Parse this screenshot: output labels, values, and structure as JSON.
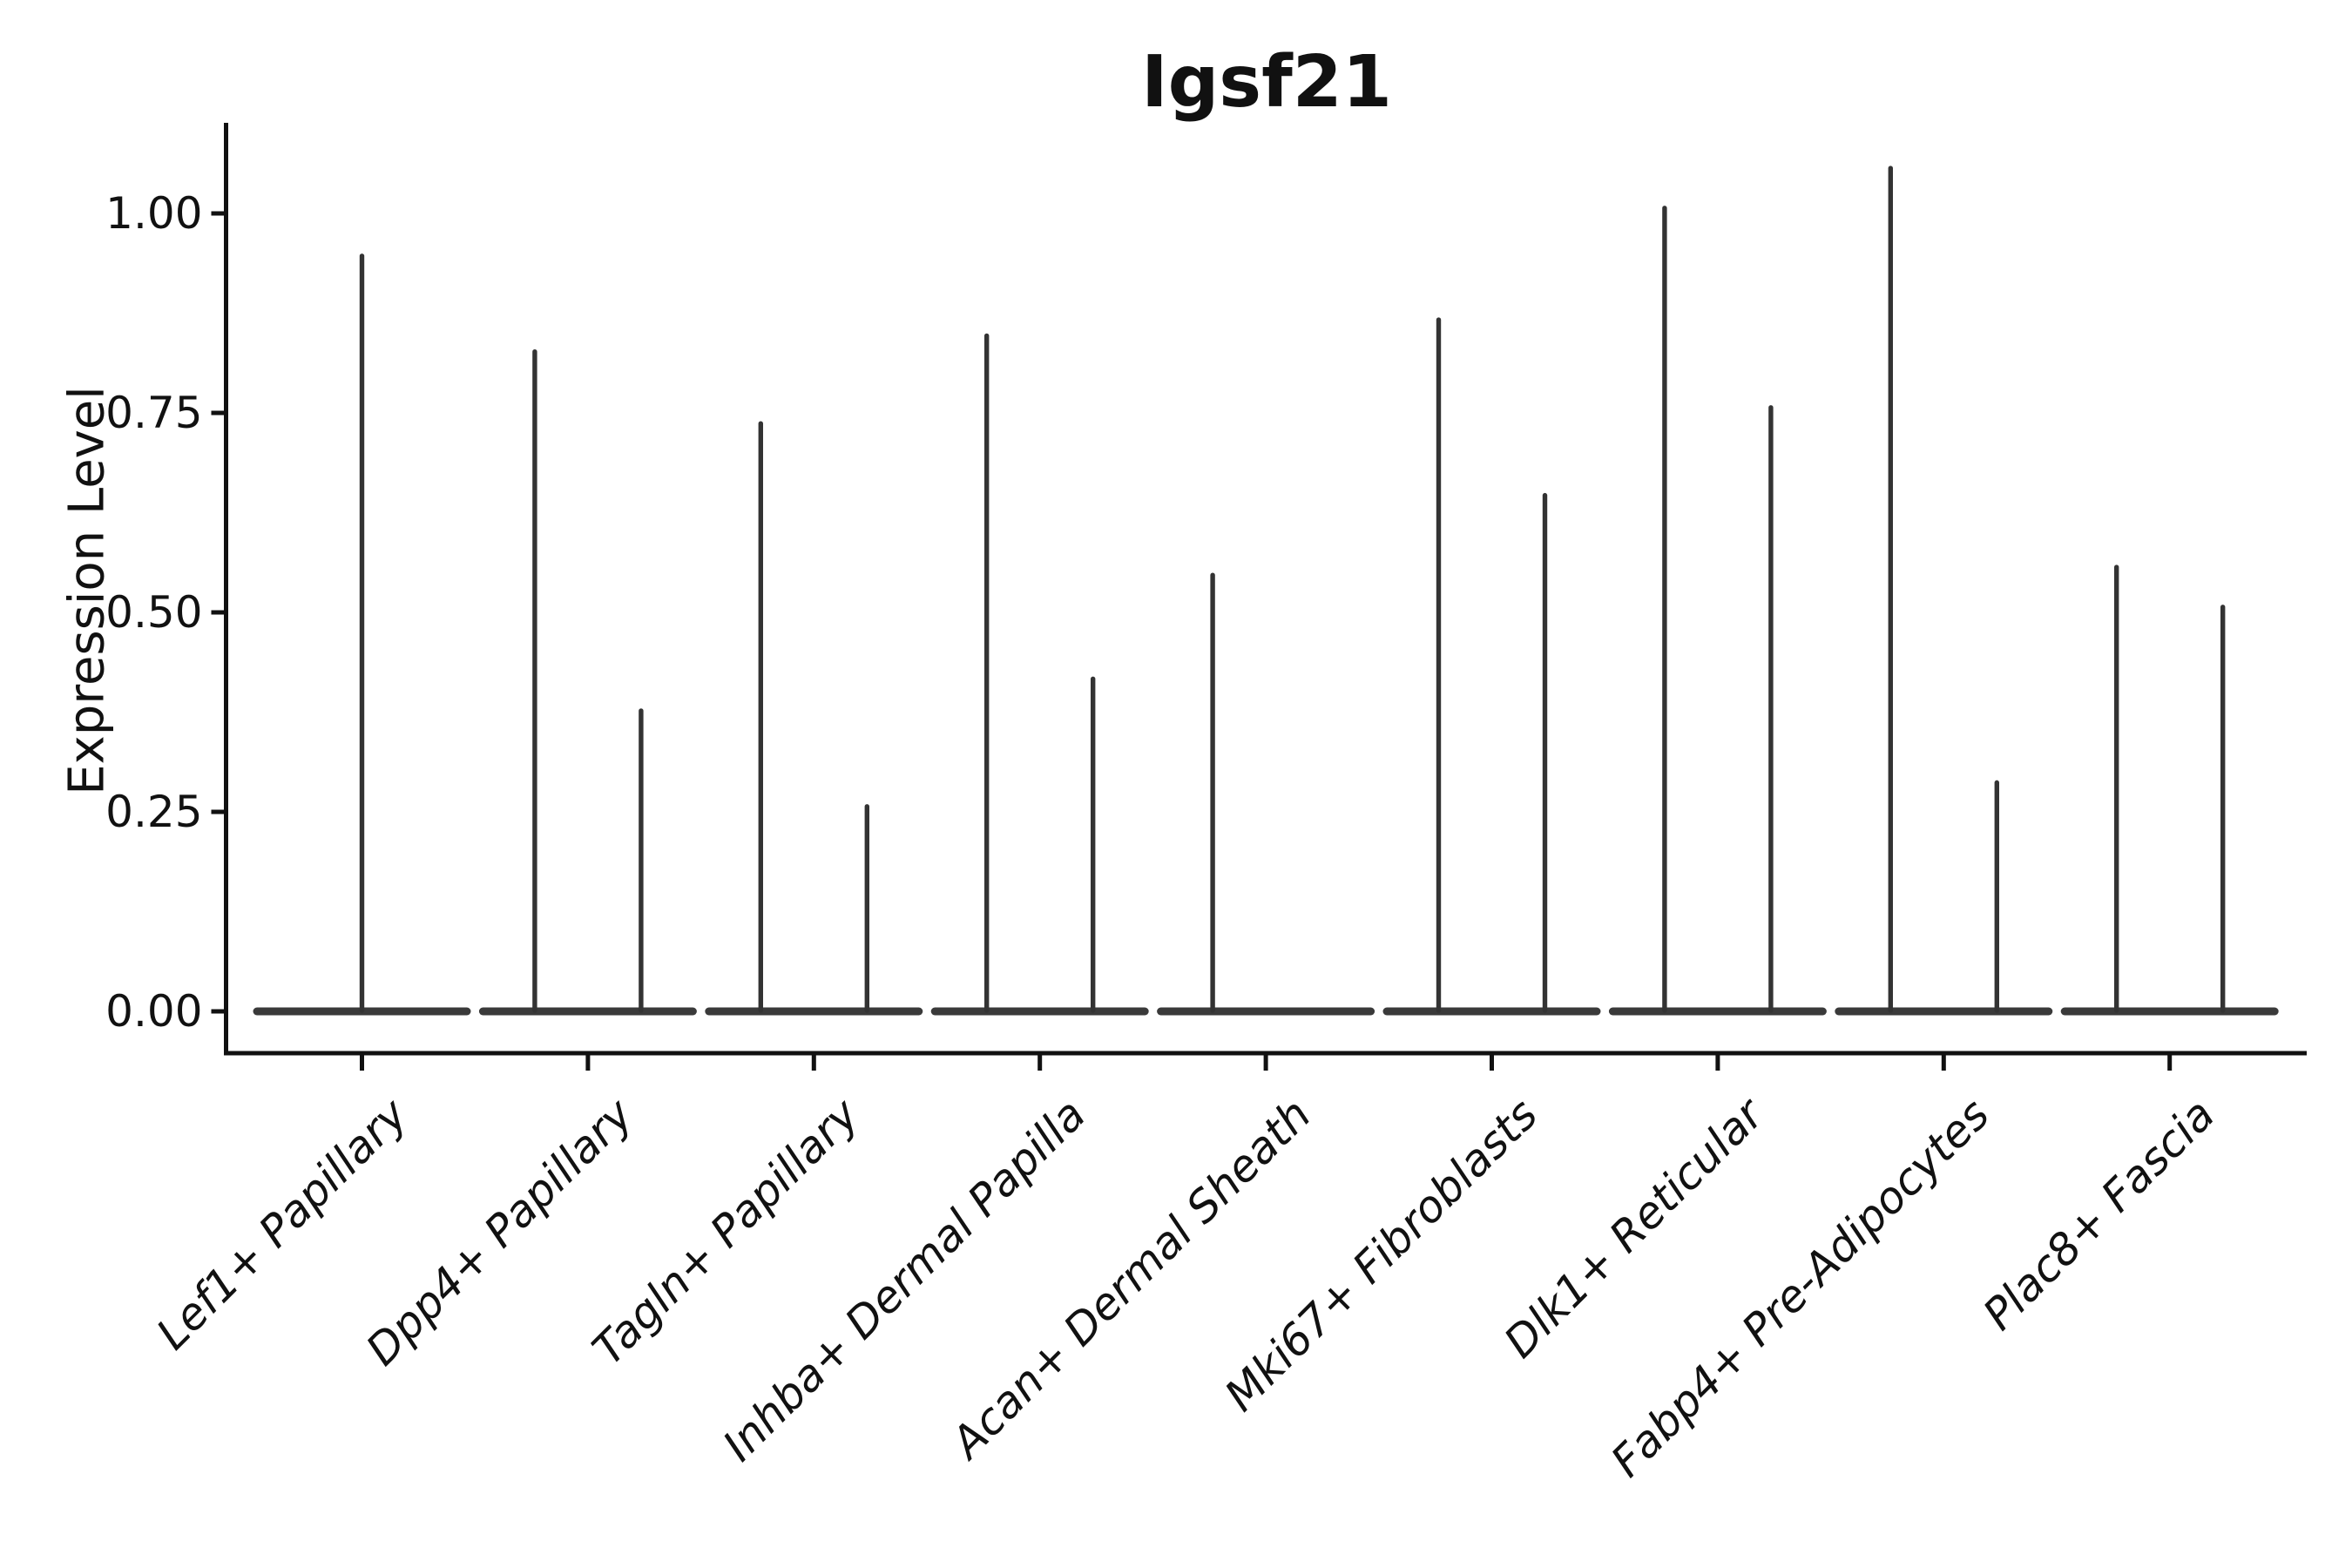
{
  "chart_data": {
    "type": "violin",
    "title": "Igsf21",
    "ylabel": "Expression Level",
    "xlabel": "",
    "legend": "none",
    "grid": false,
    "ylim": [
      -0.05,
      1.11
    ],
    "ytick_labels": [
      "0.00",
      "0.25",
      "0.50",
      "0.75",
      "1.00"
    ],
    "ytick_values": [
      0.0,
      0.25,
      0.5,
      0.75,
      1.0
    ],
    "x_tick_rotation_deg": 45,
    "categories": [
      "Lef1+ Papillary",
      "Dpp4+ Papillary",
      "Tagln+ Papillary",
      "Inhba+ Dermal Papilla",
      "Acan+ Dermal Sheath",
      "Mki67+ Fibroblasts",
      "Dlk1+ Reticular",
      "Fabp4+ Pre-Adipocytes",
      "Plac8+ Fascia"
    ],
    "violins": [
      {
        "category": "Lef1+ Papillary",
        "baseline_value": 0.0,
        "needles": [
          {
            "position": "center",
            "max": 0.95
          }
        ]
      },
      {
        "category": "Dpp4+ Papillary",
        "baseline_value": 0.0,
        "needles": [
          {
            "position": "left",
            "max": 0.83
          },
          {
            "position": "right",
            "max": 0.38
          }
        ]
      },
      {
        "category": "Tagln+ Papillary",
        "baseline_value": 0.0,
        "needles": [
          {
            "position": "left",
            "max": 0.74
          },
          {
            "position": "right",
            "max": 0.26
          }
        ]
      },
      {
        "category": "Inhba+ Dermal Papilla",
        "baseline_value": 0.0,
        "needles": [
          {
            "position": "left",
            "max": 0.85
          },
          {
            "position": "right",
            "max": 0.42
          }
        ]
      },
      {
        "category": "Acan+ Dermal Sheath",
        "baseline_value": 0.0,
        "needles": [
          {
            "position": "left",
            "max": 0.55
          }
        ]
      },
      {
        "category": "Mki67+ Fibroblasts",
        "baseline_value": 0.0,
        "needles": [
          {
            "position": "left",
            "max": 0.87
          },
          {
            "position": "right",
            "max": 0.65
          }
        ]
      },
      {
        "category": "Dlk1+ Reticular",
        "baseline_value": 0.0,
        "needles": [
          {
            "position": "left",
            "max": 1.01
          },
          {
            "position": "right",
            "max": 0.76
          }
        ]
      },
      {
        "category": "Fabp4+ Pre-Adipocytes",
        "baseline_value": 0.0,
        "needles": [
          {
            "position": "left",
            "max": 1.06
          },
          {
            "position": "right",
            "max": 0.29
          }
        ]
      },
      {
        "category": "Plac8+ Fascia",
        "baseline_value": 0.0,
        "needles": [
          {
            "position": "left",
            "max": 0.56
          },
          {
            "position": "right",
            "max": 0.51
          }
        ]
      }
    ],
    "colors": {
      "violin": "#333333",
      "violin_base": "#3a3a3a",
      "axis": "#111111",
      "text": "#111111",
      "background": "#ffffff"
    }
  }
}
